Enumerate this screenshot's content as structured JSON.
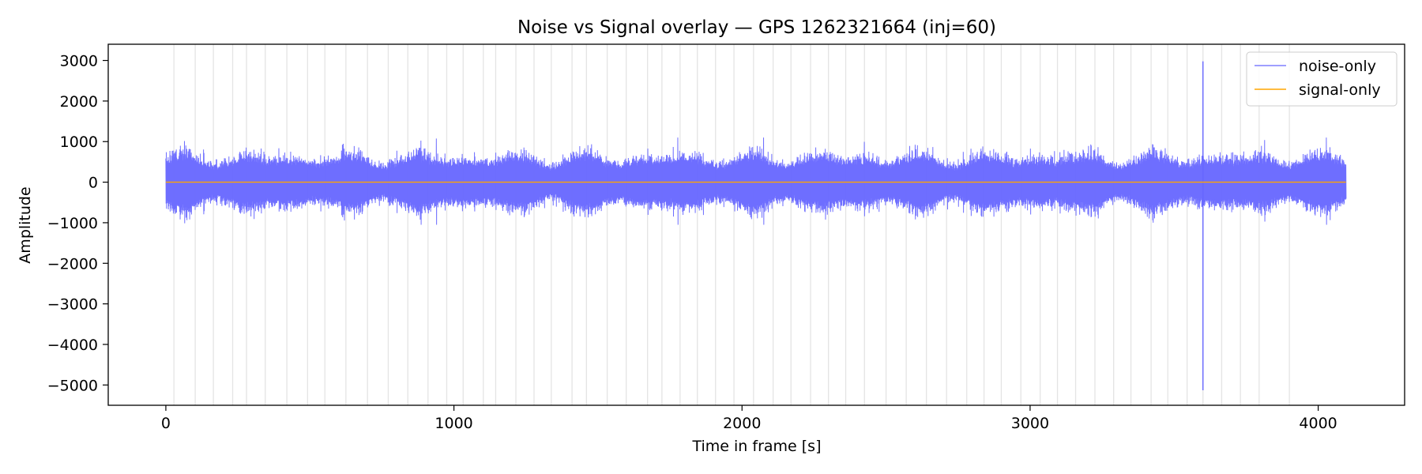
{
  "chart_data": {
    "type": "line",
    "title": "Noise vs Signal overlay — GPS 1262321664 (inj=60)",
    "xlabel": "Time in frame [s]",
    "ylabel": "Amplitude",
    "xlim": [
      -200,
      4300
    ],
    "ylim": [
      -5500,
      3400
    ],
    "x_ticks": [
      0,
      1000,
      2000,
      3000,
      4000
    ],
    "x_tick_labels": [
      "0",
      "1000",
      "2000",
      "3000",
      "4000"
    ],
    "y_ticks": [
      3000,
      2000,
      1000,
      0,
      -1000,
      -2000,
      -3000,
      -4000,
      -5000
    ],
    "y_tick_labels": [
      "3000",
      "2000",
      "1000",
      "0",
      "−1000",
      "−2000",
      "−3000",
      "−4000",
      "−5000"
    ],
    "grid": "vertical lines at injection times",
    "injection_count": 60,
    "injection_times": [
      28,
      102,
      165,
      232,
      280,
      345,
      420,
      492,
      552,
      625,
      700,
      772,
      840,
      910,
      975,
      1032,
      1102,
      1145,
      1215,
      1278,
      1338,
      1410,
      1460,
      1532,
      1598,
      1672,
      1722,
      1785,
      1845,
      1908,
      1972,
      2040,
      2108,
      2170,
      2238,
      2300,
      2360,
      2425,
      2500,
      2570,
      2640,
      2710,
      2780,
      2840,
      2900,
      2968,
      3035,
      3095,
      3158,
      3225,
      3290,
      3350,
      3420,
      3478,
      3545,
      3600,
      3665,
      3730,
      3795,
      3900
    ],
    "legend_position": "top-right",
    "series": [
      {
        "name": "noise-only",
        "color": "#6666ff",
        "x_range": [
          0,
          4096
        ],
        "typical_envelope": [
          -600,
          600
        ],
        "peak_envelope": [
          -1050,
          1100
        ],
        "spike": {
          "x": 3600,
          "max": 2980,
          "min": -5130
        }
      },
      {
        "name": "signal-only",
        "color": "#ffa500",
        "x_range": [
          0,
          4096
        ],
        "value": 0
      }
    ]
  }
}
